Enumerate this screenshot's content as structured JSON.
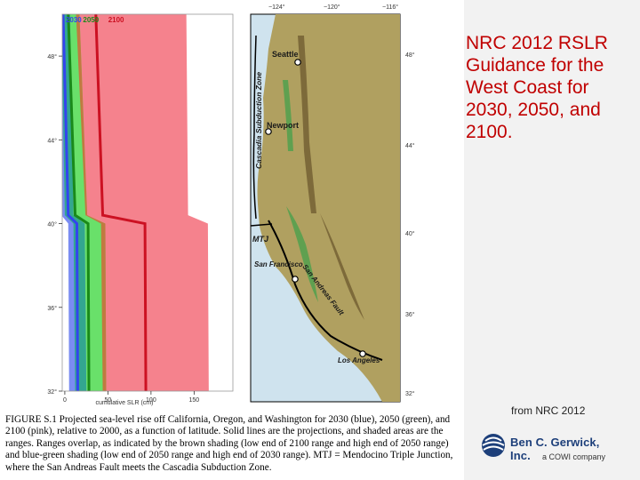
{
  "slide": {
    "title": "NRC 2012 RSLR Guidance for the West Coast for 2030, 2050, and 2100.",
    "source_note": "from NRC 2012",
    "logo_name": "Ben C. Gerwick, Inc.",
    "logo_sub": "a COWI company"
  },
  "figure": {
    "caption": "FIGURE S.1 Projected sea-level rise off California, Oregon, and Washington for 2030 (blue), 2050 (green), and 2100 (pink), relative to 2000, as a function of latitude. Solid lines are the projections, and shaded areas are the ranges. Ranges overlap, as indicated by the brown shading (low end of 2100 range and high end of 2050 range) and blue-green shading (low end of 2050 range and high end of 2030 range). MTJ = Mendocino Triple Junction, where the San Andreas Fault meets the Cascadia Subduction Zone."
  },
  "chart_data": {
    "type": "area",
    "xlabel": "cumulative SLR (cm)",
    "ylabel": "",
    "title": "",
    "xlim": [
      -3,
      195
    ],
    "ylim": [
      32,
      50
    ],
    "x_ticks": [
      0,
      50,
      100,
      150
    ],
    "x_tick_labels": [
      "0",
      "50",
      "100",
      "150"
    ],
    "y_ticks": [
      32,
      36,
      40,
      44,
      48
    ],
    "y_tick_labels": [
      "32°",
      "36°",
      "40°",
      "44°",
      "48°"
    ],
    "series": [
      {
        "name": "2030",
        "color": "#3344ee",
        "range_color": "#7a8cf2",
        "latitude": [
          50,
          40.4,
          40,
          32
        ],
        "projection": [
          -2,
          4,
          14,
          15
        ],
        "low": [
          -8,
          -4,
          4,
          5
        ],
        "high": [
          6,
          10,
          23,
          25
        ]
      },
      {
        "name": "2050",
        "color": "#1a8a1a",
        "range_color": "#69e06a",
        "latitude": [
          50,
          40.4,
          40,
          32
        ],
        "projection": [
          4,
          12,
          27,
          28
        ],
        "low": [
          -4,
          0,
          10,
          12
        ],
        "high": [
          17,
          26,
          47,
          48
        ]
      },
      {
        "name": "2100",
        "color": "#cc1122",
        "range_color": "#f5828d",
        "latitude": [
          50,
          40.4,
          40,
          32
        ],
        "projection": [
          36,
          44,
          93,
          94
        ],
        "low": [
          13,
          24,
          42,
          44
        ],
        "high": [
          141,
          143,
          166,
          167
        ]
      }
    ],
    "overlap_colors": {
      "brown": "#c07a40",
      "blue_green": "#33a690"
    }
  },
  "map": {
    "lon_labels": [
      "−124°",
      "−120°",
      "−116°"
    ],
    "lat_labels": [
      "48°",
      "44°",
      "40°",
      "36°",
      "32°"
    ],
    "places": [
      {
        "name": "Seattle"
      },
      {
        "name": "Newport"
      },
      {
        "name": "San Francisco"
      },
      {
        "name": "Los Angeles"
      }
    ],
    "features": {
      "subduction_zone": "Cascadia Subduction Zone",
      "fault": "San Andreas Fault",
      "junction": "MTJ"
    },
    "colors": {
      "ocean": "#cfe3ee",
      "land": "#b0a060",
      "highland": "#7d6a3a",
      "lowland": "#5fa050"
    }
  }
}
